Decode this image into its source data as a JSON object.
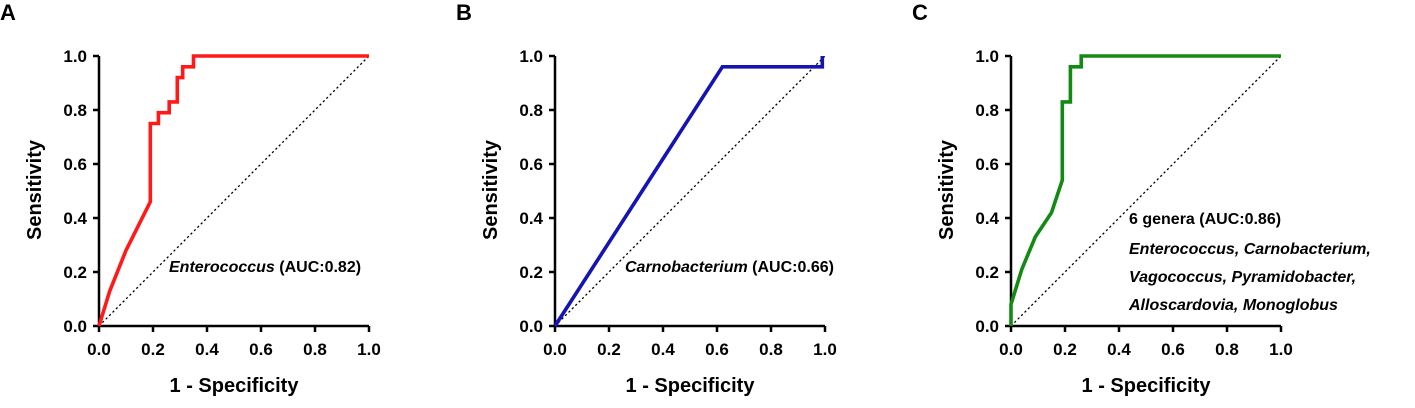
{
  "chart_data": [
    {
      "type": "line",
      "panel_label": "A",
      "xlabel": "1 - Specificity",
      "ylabel": "Sensitivity",
      "xlim": [
        0,
        1
      ],
      "ylim": [
        0,
        1
      ],
      "xticks": [
        "0.0",
        "0.2",
        "0.4",
        "0.6",
        "0.8",
        "1.0"
      ],
      "yticks": [
        "0.0",
        "0.2",
        "0.4",
        "0.6",
        "0.8",
        "1.0"
      ],
      "grid": false,
      "reference_line": "diagonal dotted",
      "color": "#ff1a1a",
      "annotation_italic": "Enterococcus",
      "annotation_rest": " (AUC:0.82)",
      "x": [
        0,
        0.04,
        0.1,
        0.15,
        0.19,
        0.19,
        0.22,
        0.22,
        0.26,
        0.26,
        0.29,
        0.29,
        0.31,
        0.31,
        0.35,
        0.35,
        1.0
      ],
      "y": [
        0,
        0.13,
        0.28,
        0.38,
        0.46,
        0.75,
        0.75,
        0.79,
        0.79,
        0.83,
        0.83,
        0.92,
        0.92,
        0.96,
        0.96,
        1.0,
        1.0
      ]
    },
    {
      "type": "line",
      "panel_label": "B",
      "xlabel": "1 - Specificity",
      "ylabel": "Sensitivity",
      "xlim": [
        0,
        1
      ],
      "ylim": [
        0,
        1
      ],
      "xticks": [
        "0.0",
        "0.2",
        "0.4",
        "0.6",
        "0.8",
        "1.0"
      ],
      "yticks": [
        "0.0",
        "0.2",
        "0.4",
        "0.6",
        "0.8",
        "1.0"
      ],
      "grid": false,
      "reference_line": "diagonal dotted",
      "color": "#1414b4",
      "annotation_italic": "Carnobacterium",
      "annotation_rest": " (AUC:0.66)",
      "x": [
        0,
        0.62,
        0.99,
        0.99
      ],
      "y": [
        0,
        0.96,
        0.96,
        1.0
      ]
    },
    {
      "type": "line",
      "panel_label": "C",
      "xlabel": "1 - Specificity",
      "ylabel": "Sensitivity",
      "xlim": [
        0,
        1
      ],
      "ylim": [
        0,
        1
      ],
      "xticks": [
        "0.0",
        "0.2",
        "0.4",
        "0.6",
        "0.8",
        "1.0"
      ],
      "yticks": [
        "0.0",
        "0.2",
        "0.4",
        "0.6",
        "0.8",
        "1.0"
      ],
      "grid": false,
      "reference_line": "diagonal dotted",
      "color": "#138a13",
      "annotation_line1": "6 genera (AUC:0.86)",
      "annotation_line2": "Enterococcus, Carnobacterium,",
      "annotation_line3": "Vagococcus, Pyramidobacter,",
      "annotation_line4": "Alloscardovia, Monoglobus",
      "x": [
        0,
        0,
        0.04,
        0.09,
        0.15,
        0.19,
        0.19,
        0.22,
        0.22,
        0.26,
        0.26,
        1.0
      ],
      "y": [
        0,
        0.08,
        0.21,
        0.33,
        0.42,
        0.54,
        0.83,
        0.83,
        0.96,
        0.96,
        1.0,
        1.0
      ]
    }
  ]
}
